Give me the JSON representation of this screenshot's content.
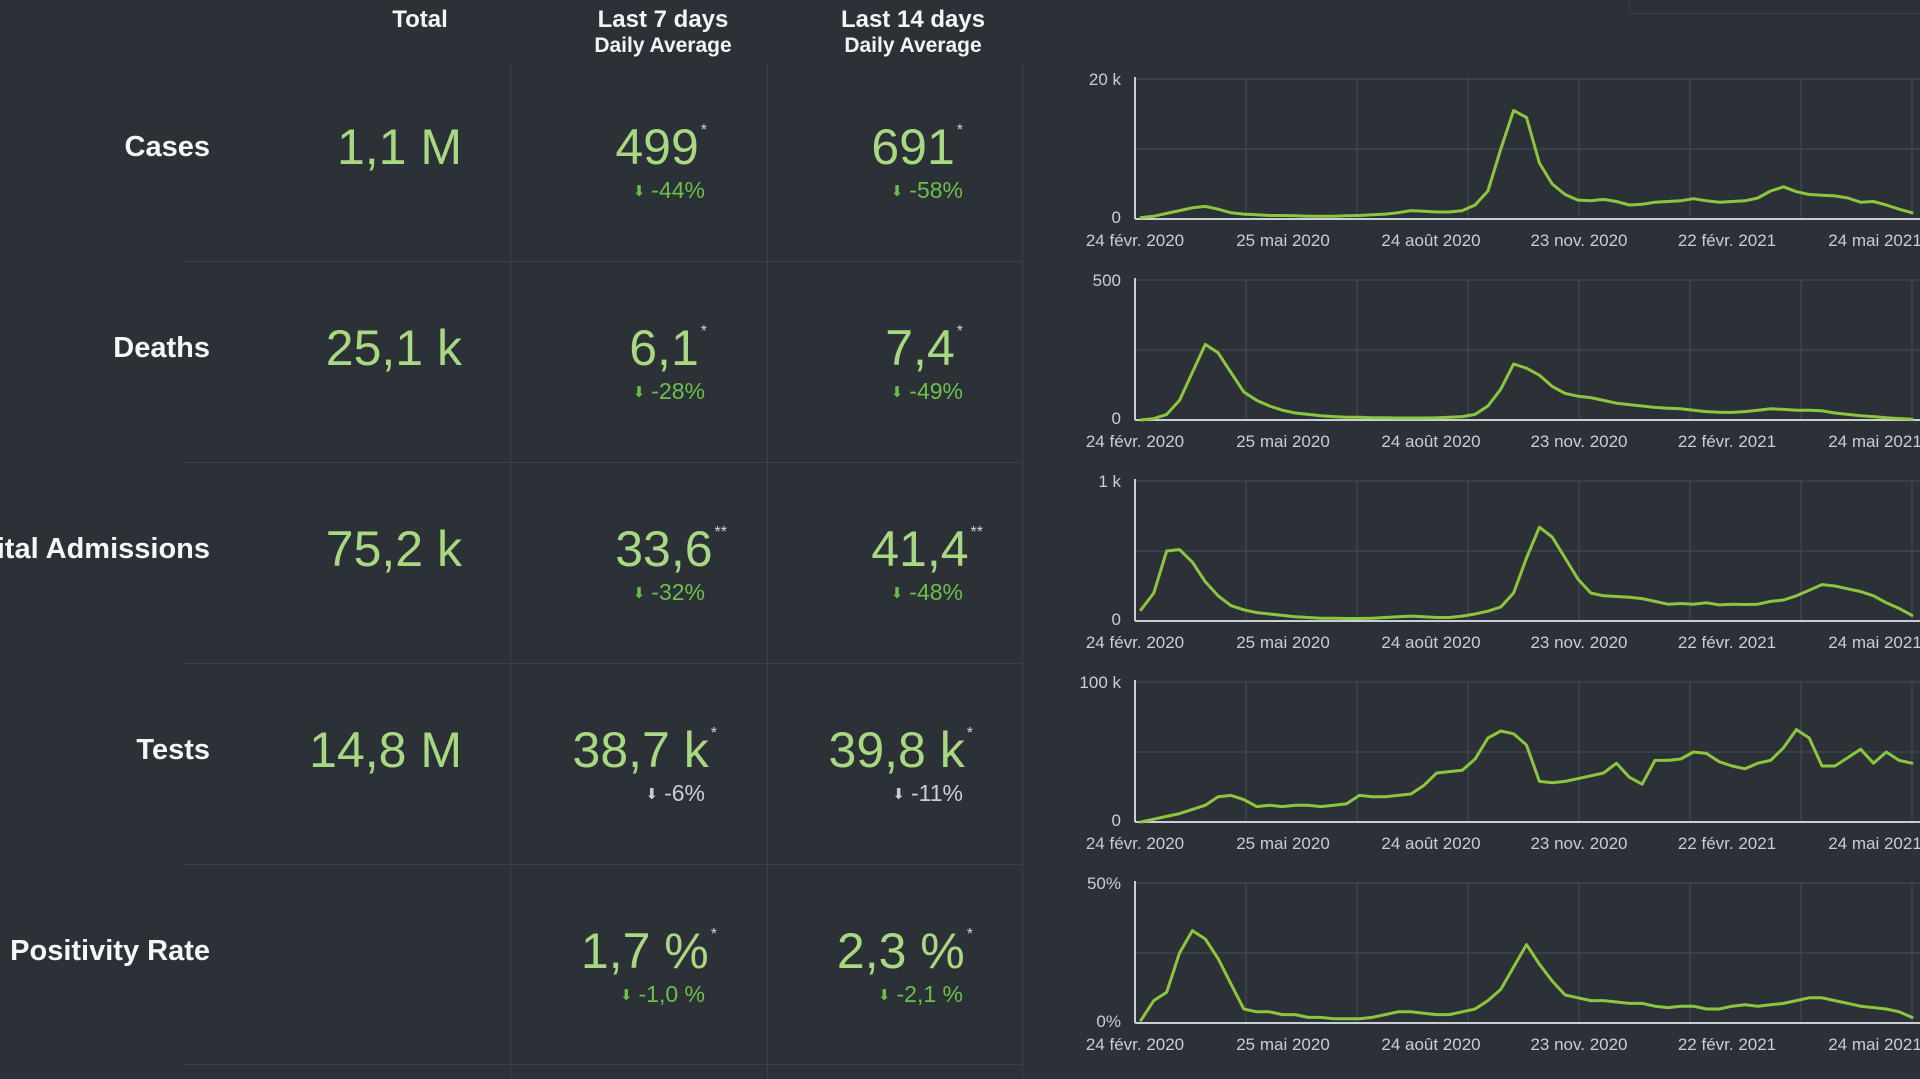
{
  "headers": {
    "total": "Total",
    "last7": "Last 7 days",
    "last7_sub": "Daily Average",
    "last14": "Last 14 days",
    "last14_sub": "Daily Average"
  },
  "rows": [
    {
      "label": "Cases",
      "total": "1,1 M",
      "avg7": "499",
      "mark7": "*",
      "delta7": "-44%",
      "avg14": "691",
      "mark14": "*",
      "delta14": "-58%"
    },
    {
      "label": "Deaths",
      "total": "25,1 k",
      "avg7": "6,1",
      "mark7": "*",
      "delta7": "-28%",
      "avg14": "7,4",
      "mark14": "*",
      "delta14": "-49%"
    },
    {
      "label": "pital Admissions",
      "total": "75,2 k",
      "avg7": "33,6",
      "mark7": "**",
      "delta7": "-32%",
      "avg14": "41,4",
      "mark14": "**",
      "delta14": "-48%"
    },
    {
      "label": "Tests",
      "total": "14,8 M",
      "avg7": "38,7 k",
      "mark7": "*",
      "delta7": "-6%",
      "avg14": "39,8 k",
      "mark14": "*",
      "delta14": "-11%"
    },
    {
      "label": "Positivity Rate",
      "total": "",
      "avg7": "1,7 %",
      "mark7": "*",
      "delta7": "-1,0 %",
      "avg14": "2,3 %",
      "mark14": "*",
      "delta14": "-2,1 %"
    }
  ],
  "icons": {
    "delta_arrow": "arrow-down-icon"
  },
  "colors": {
    "background": "#2b3137",
    "value_green": "#a8d881",
    "delta_green": "#6cbf4a",
    "delta_grey": "#c8ced4",
    "line": "#8cc63f",
    "grid": "#464f57"
  },
  "chart_data": [
    {
      "type": "line",
      "metric": "Cases",
      "xticks": [
        "24 févr. 2020",
        "25 mai 2020",
        "24 août 2020",
        "23 nov. 2020",
        "22 févr. 2021",
        "24 mai 2021"
      ],
      "ylim": [
        0,
        20000
      ],
      "yticks": [
        "0",
        "20 k"
      ],
      "y": [
        200,
        400,
        800,
        1200,
        1600,
        1800,
        1400,
        900,
        700,
        600,
        500,
        500,
        450,
        400,
        400,
        400,
        450,
        500,
        600,
        700,
        900,
        1200,
        1100,
        1000,
        1000,
        1200,
        2000,
        4000,
        10000,
        15500,
        14500,
        8000,
        5000,
        3500,
        2700,
        2600,
        2800,
        2500,
        2000,
        2100,
        2400,
        2500,
        2600,
        2900,
        2600,
        2400,
        2500,
        2600,
        3000,
        4000,
        4600,
        3900,
        3500,
        3400,
        3300,
        3000,
        2400,
        2500,
        2000,
        1400,
        900
      ]
    },
    {
      "type": "line",
      "metric": "Deaths",
      "xticks": [
        "24 févr. 2020",
        "25 mai 2020",
        "24 août 2020",
        "23 nov. 2020",
        "22 févr. 2021",
        "24 mai 2021"
      ],
      "ylim": [
        0,
        500
      ],
      "yticks": [
        "0",
        "500"
      ],
      "y": [
        0,
        5,
        20,
        70,
        170,
        270,
        240,
        170,
        100,
        70,
        50,
        35,
        25,
        20,
        15,
        12,
        10,
        10,
        8,
        8,
        7,
        7,
        7,
        8,
        10,
        12,
        20,
        50,
        110,
        200,
        185,
        160,
        120,
        95,
        85,
        80,
        70,
        60,
        55,
        50,
        45,
        42,
        40,
        35,
        30,
        28,
        27,
        30,
        35,
        40,
        38,
        35,
        35,
        33,
        25,
        20,
        15,
        12,
        8,
        5,
        3
      ]
    },
    {
      "type": "line",
      "metric": "Hospital Admissions",
      "xticks": [
        "24 févr. 2020",
        "25 mai 2020",
        "24 août 2020",
        "23 nov. 2020",
        "22 févr. 2021",
        "24 mai 2021"
      ],
      "ylim": [
        0,
        1000
      ],
      "yticks": [
        "0",
        "1 k"
      ],
      "y": [
        80,
        200,
        500,
        510,
        420,
        280,
        180,
        110,
        80,
        60,
        50,
        40,
        30,
        25,
        20,
        20,
        18,
        18,
        20,
        25,
        30,
        35,
        30,
        25,
        25,
        35,
        50,
        70,
        100,
        200,
        450,
        670,
        600,
        450,
        300,
        200,
        180,
        175,
        170,
        160,
        140,
        120,
        125,
        120,
        130,
        115,
        120,
        118,
        120,
        140,
        150,
        180,
        220,
        260,
        250,
        230,
        210,
        180,
        130,
        90,
        40
      ]
    },
    {
      "type": "line",
      "metric": "Tests",
      "xticks": [
        "24 févr. 2020",
        "25 mai 2020",
        "24 août 2020",
        "23 nov. 2020",
        "22 févr. 2021",
        "24 mai 2021"
      ],
      "ylim": [
        0,
        100000
      ],
      "yticks": [
        "0",
        "100 k"
      ],
      "y": [
        0,
        2000,
        4000,
        6000,
        9000,
        12000,
        18000,
        19000,
        16000,
        11000,
        12000,
        11000,
        12000,
        12000,
        11000,
        12000,
        13000,
        19000,
        18000,
        18000,
        19000,
        20000,
        26000,
        35000,
        36000,
        37000,
        45000,
        60000,
        65000,
        63000,
        55000,
        29000,
        28000,
        29000,
        31000,
        33000,
        35000,
        42000,
        32000,
        27000,
        44000,
        44000,
        45000,
        50000,
        49000,
        43000,
        40000,
        38000,
        42000,
        44000,
        53000,
        66000,
        60000,
        40000,
        40000,
        46000,
        52000,
        42000,
        50000,
        44000,
        42000
      ]
    },
    {
      "type": "line",
      "metric": "Positivity Rate",
      "xticks": [
        "24 févr. 2020",
        "25 mai 2020",
        "24 août 2020",
        "23 nov. 2020",
        "22 févr. 2021",
        "24 mai 2021"
      ],
      "ylim": [
        0,
        50
      ],
      "yticks": [
        "0%",
        "50%"
      ],
      "y": [
        1,
        8,
        11,
        25,
        33,
        30,
        23,
        14,
        5,
        4,
        4,
        3,
        3,
        2,
        2,
        1.5,
        1.5,
        1.5,
        2,
        3,
        4,
        4,
        3.5,
        3,
        3,
        4,
        5,
        8,
        12,
        20,
        28,
        21,
        15,
        10,
        9,
        8,
        8,
        7.5,
        7,
        7,
        6,
        5.5,
        6,
        6,
        5,
        5,
        6,
        6.5,
        6,
        6.5,
        7,
        8,
        9,
        9,
        8,
        7,
        6,
        5.5,
        5,
        4,
        2
      ]
    }
  ]
}
